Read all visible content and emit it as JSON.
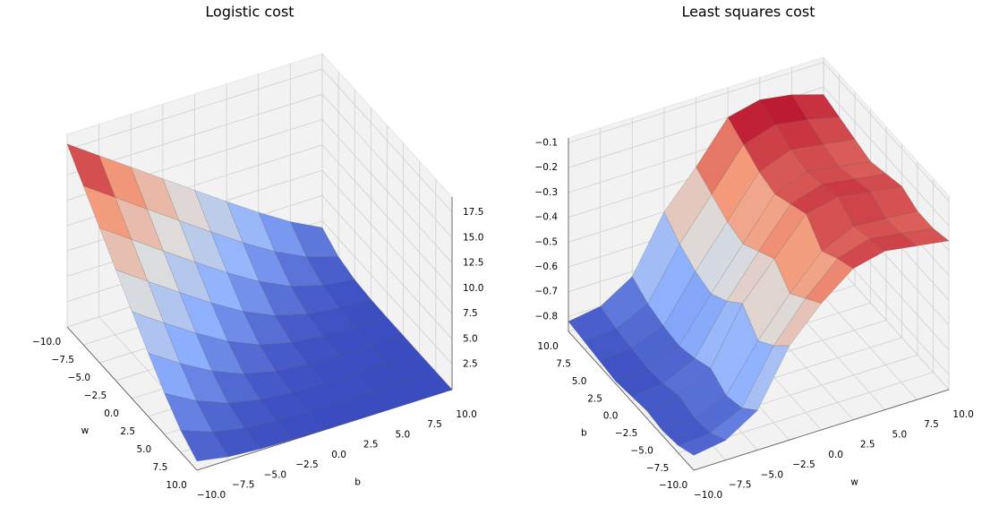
{
  "chart_data": [
    {
      "type": "surface",
      "title": "Logistic cost",
      "x_label": "w",
      "y_label": "b",
      "x": [
        -10,
        -7.5,
        -5,
        -2.5,
        0,
        2.5,
        5,
        7.5,
        10
      ],
      "y": [
        -10,
        -7.5,
        -5,
        -2.5,
        0,
        2.5,
        5,
        7.5,
        10
      ],
      "z": [
        [
          18.05,
          15.91,
          13.78,
          11.64,
          9.51,
          7.4,
          5.34,
          3.42,
          1.85
        ],
        [
          15.68,
          13.54,
          11.4,
          9.28,
          7.17,
          5.12,
          3.23,
          1.71,
          0.74
        ],
        [
          13.3,
          11.17,
          9.04,
          6.94,
          4.9,
          3.05,
          1.57,
          0.66,
          0.24
        ],
        [
          10.93,
          8.81,
          6.71,
          4.68,
          2.84,
          1.44,
          0.59,
          0.21,
          0.07
        ],
        [
          8.57,
          6.48,
          4.47,
          2.67,
          1.32,
          0.54,
          0.19,
          0.06,
          0.02
        ],
        [
          6.25,
          4.24,
          2.49,
          1.2,
          0.48,
          0.17,
          0.06,
          0.02,
          0.01
        ],
        [
          4.04,
          2.32,
          1.09,
          0.43,
          0.15,
          0.05,
          0.02,
          0.01,
          0.0
        ],
        [
          2.16,
          1.0,
          0.38,
          0.13,
          0.04,
          0.02,
          0.01,
          0.0,
          0.0
        ],
        [
          0.9,
          0.34,
          0.12,
          0.04,
          0.01,
          0.0,
          0.0,
          0.0,
          0.0
        ]
      ],
      "xlim": [
        -10,
        10
      ],
      "ylim": [
        -10,
        10
      ],
      "zlim": [
        0,
        19
      ],
      "xticks": [
        {
          "value": -10,
          "label": "−10.0"
        },
        {
          "value": -7.5,
          "label": "−7.5"
        },
        {
          "value": -5,
          "label": "−5.0"
        },
        {
          "value": -2.5,
          "label": "−2.5"
        },
        {
          "value": 0,
          "label": "0.0"
        },
        {
          "value": 2.5,
          "label": "2.5"
        },
        {
          "value": 5,
          "label": "5.0"
        },
        {
          "value": 7.5,
          "label": "7.5"
        },
        {
          "value": 10,
          "label": "10.0"
        }
      ],
      "yticks": [
        {
          "value": -10,
          "label": "−10.0"
        },
        {
          "value": -7.5,
          "label": "−7.5"
        },
        {
          "value": -5,
          "label": "−5.0"
        },
        {
          "value": -2.5,
          "label": "−2.5"
        },
        {
          "value": 0,
          "label": "0.0"
        },
        {
          "value": 2.5,
          "label": "2.5"
        },
        {
          "value": 5,
          "label": "5.0"
        },
        {
          "value": 7.5,
          "label": "7.5"
        },
        {
          "value": 10,
          "label": "10.0"
        }
      ],
      "zticks": [
        2.5,
        {
          "value": 5,
          "label": "5.0"
        },
        7.5,
        {
          "value": 10,
          "label": "10.0"
        },
        12.5,
        {
          "value": 15,
          "label": "15.0"
        },
        17.5
      ],
      "colormap": [
        "#3b4cc0",
        "#8db0fe",
        "#dddddd",
        "#f49a7b",
        "#b40426"
      ],
      "grid": true
    },
    {
      "type": "surface",
      "title": "Least squares cost",
      "x_label": "w",
      "y_label": "b",
      "x": [
        -10,
        -7.5,
        -5,
        -2.5,
        0,
        2.5,
        5,
        7.5,
        10
      ],
      "y": [
        -10,
        -7.5,
        -5,
        -2.5,
        0,
        2.5,
        5,
        7.5,
        10
      ],
      "z": [
        [
          -0.8,
          -0.83,
          -0.84,
          -0.83,
          -0.84,
          -0.85,
          -0.84,
          -0.83,
          -0.82
        ],
        [
          -0.78,
          -0.82,
          -0.83,
          -0.81,
          -0.83,
          -0.84,
          -0.83,
          -0.82,
          -0.8
        ],
        [
          -0.7,
          -0.76,
          -0.78,
          -0.74,
          -0.77,
          -0.79,
          -0.78,
          -0.76,
          -0.72
        ],
        [
          -0.48,
          -0.55,
          -0.6,
          -0.52,
          -0.58,
          -0.62,
          -0.6,
          -0.56,
          -0.5
        ],
        [
          -0.35,
          -0.4,
          -0.45,
          -0.38,
          -0.42,
          -0.46,
          -0.44,
          -0.4,
          -0.36
        ],
        [
          -0.25,
          -0.28,
          -0.32,
          -0.24,
          -0.27,
          -0.3,
          -0.28,
          -0.24,
          -0.2
        ],
        [
          -0.22,
          -0.24,
          -0.26,
          -0.21,
          -0.23,
          -0.25,
          -0.23,
          -0.2,
          -0.17
        ],
        [
          -0.24,
          -0.26,
          -0.27,
          -0.23,
          -0.25,
          -0.27,
          -0.25,
          -0.22,
          -0.19
        ],
        [
          -0.26,
          -0.28,
          -0.28,
          -0.25,
          -0.27,
          -0.29,
          -0.27,
          -0.25,
          -0.23
        ]
      ],
      "xlim": [
        -10,
        10
      ],
      "ylim": [
        -10,
        10
      ],
      "zlim": [
        -0.86,
        -0.08
      ],
      "xticks": [
        {
          "value": -10,
          "label": "−10.0"
        },
        {
          "value": -7.5,
          "label": "−7.5"
        },
        {
          "value": -5,
          "label": "−5.0"
        },
        {
          "value": -2.5,
          "label": "−2.5"
        },
        {
          "value": 0,
          "label": "0.0"
        },
        {
          "value": 2.5,
          "label": "2.5"
        },
        {
          "value": 5,
          "label": "5.0"
        },
        {
          "value": 7.5,
          "label": "7.5"
        },
        {
          "value": 10,
          "label": "10.0"
        }
      ],
      "yticks": [
        {
          "value": -10,
          "label": "−10.0"
        },
        {
          "value": -7.5,
          "label": "−7.5"
        },
        {
          "value": -5,
          "label": "−5.0"
        },
        {
          "value": -2.5,
          "label": "−2.5"
        },
        {
          "value": 0,
          "label": "0.0"
        },
        {
          "value": 2.5,
          "label": "2.5"
        },
        {
          "value": 5,
          "label": "5.0"
        },
        {
          "value": 7.5,
          "label": "7.5"
        },
        {
          "value": 10,
          "label": "10.0"
        }
      ],
      "zticks": [
        {
          "value": -0.8,
          "label": "−0.8"
        },
        {
          "value": -0.7,
          "label": "−0.7"
        },
        {
          "value": -0.6,
          "label": "−0.6"
        },
        {
          "value": -0.5,
          "label": "−0.5"
        },
        {
          "value": -0.4,
          "label": "−0.4"
        },
        {
          "value": -0.3,
          "label": "−0.3"
        },
        {
          "value": -0.2,
          "label": "−0.2"
        },
        {
          "value": -0.1,
          "label": "−0.1"
        }
      ],
      "colormap": [
        "#3b4cc0",
        "#8db0fe",
        "#dddddd",
        "#f49a7b",
        "#b40426"
      ],
      "grid": true
    }
  ]
}
